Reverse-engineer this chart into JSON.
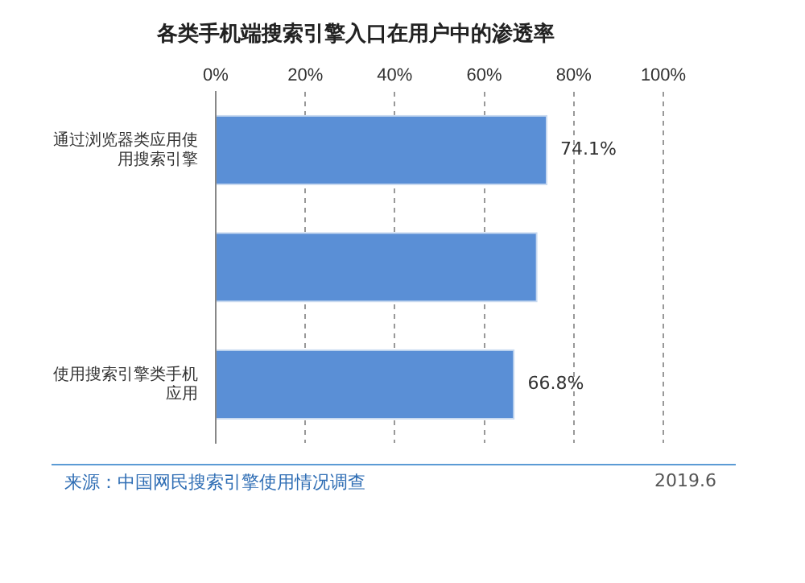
{
  "chart_data": {
    "type": "bar",
    "orientation": "horizontal",
    "title": "各类手机端搜索引擎入口在用户中的渗透率",
    "categories": [
      "通过浏览器类应用使用搜索引擎",
      null,
      "使用搜索引擎类手机应用"
    ],
    "values": [
      74.1,
      71.9,
      66.8
    ],
    "color": "#5a8fd6",
    "value_labels": [
      "74.1%",
      null,
      "66.8%"
    ],
    "xlim": [
      0,
      100
    ],
    "xticks": [
      {
        "value": 0,
        "label": "0%"
      },
      {
        "value": 20,
        "label": "20%"
      },
      {
        "value": 40,
        "label": "40%"
      },
      {
        "value": 60,
        "label": "60%"
      },
      {
        "value": 80,
        "label": "80%"
      },
      {
        "value": 100,
        "label": "100%"
      }
    ],
    "grid": "x",
    "line_style": "dashed",
    "legend": false,
    "annotations": [
      "来源：中国网民搜索引擎使用情况调查",
      "2019.6"
    ]
  }
}
